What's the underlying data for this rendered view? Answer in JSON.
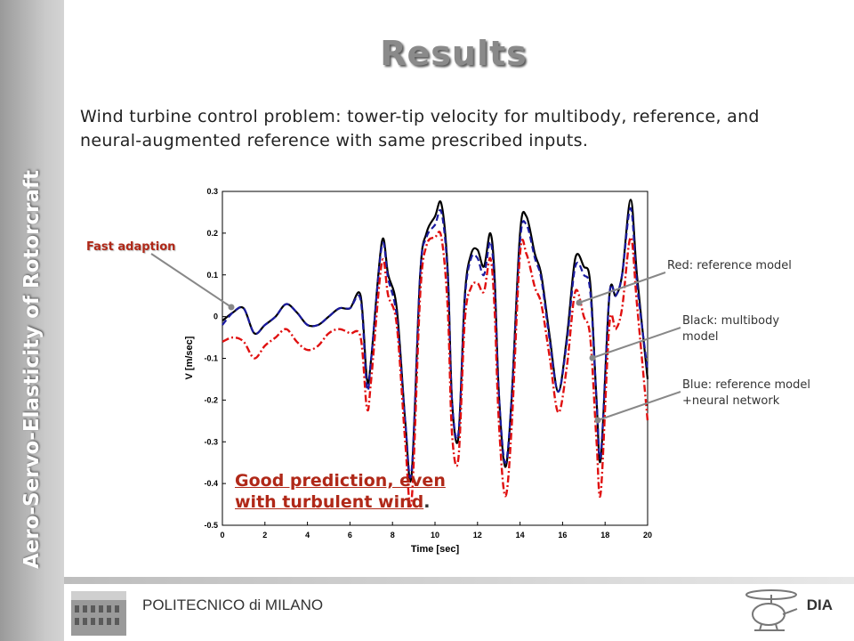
{
  "sidebar": {
    "text": "Aero-Servo-Elasticity of Rotorcraft"
  },
  "slide": {
    "title": "Results",
    "description": "Wind turbine control problem: tower-tip velocity for multibody, reference, and neural-augmented reference with same prescribed inputs."
  },
  "annotations": {
    "fast": "Fast adaption",
    "red": "Red: reference model",
    "black_1": "Black: multibody",
    "black_2": "model",
    "blue_1": "Blue: reference model",
    "blue_2": "+neural network",
    "good_1": "Good prediction, even",
    "good_2": "with turbulent wind",
    "good_2_end": "."
  },
  "footer": {
    "left": "POLITECNICO di MILANO",
    "right": "DIA"
  },
  "colors": {
    "black_series": "#000000",
    "blue_series": "#1a1aa0",
    "red_series": "#e01010",
    "annotation_red": "#b02818"
  },
  "chart_data": {
    "type": "line",
    "title": "",
    "xlabel": "Time [sec]",
    "ylabel": "V [m/sec]",
    "xlim": [
      0,
      20
    ],
    "ylim": [
      -0.5,
      0.3
    ],
    "xticks": [
      0,
      2,
      4,
      6,
      8,
      10,
      12,
      14,
      16,
      18,
      20
    ],
    "yticks": [
      0.3,
      0.2,
      0.1,
      0,
      -0.1,
      -0.2,
      -0.3,
      -0.4,
      -0.5
    ],
    "grid": false,
    "series": [
      {
        "key": "black",
        "style": "solid",
        "color": "#000000",
        "points": [
          [
            0,
            -0.01
          ],
          [
            0.5,
            0.01
          ],
          [
            1,
            0.02
          ],
          [
            1.5,
            -0.04
          ],
          [
            2,
            -0.02
          ],
          [
            2.5,
            0.0
          ],
          [
            3,
            0.03
          ],
          [
            3.5,
            0.01
          ],
          [
            4,
            -0.02
          ],
          [
            4.5,
            -0.02
          ],
          [
            5,
            0.0
          ],
          [
            5.5,
            0.02
          ],
          [
            6,
            0.02
          ],
          [
            6.5,
            0.05
          ],
          [
            6.8,
            -0.15
          ],
          [
            7,
            -0.1
          ],
          [
            7.5,
            0.18
          ],
          [
            7.8,
            0.1
          ],
          [
            8.2,
            0.02
          ],
          [
            8.6,
            -0.25
          ],
          [
            8.9,
            -0.38
          ],
          [
            9.3,
            0.1
          ],
          [
            9.6,
            0.2
          ],
          [
            10,
            0.24
          ],
          [
            10.3,
            0.27
          ],
          [
            10.6,
            0.11
          ],
          [
            10.8,
            -0.2
          ],
          [
            11.1,
            -0.29
          ],
          [
            11.4,
            0.05
          ],
          [
            11.7,
            0.15
          ],
          [
            12,
            0.16
          ],
          [
            12.3,
            0.12
          ],
          [
            12.6,
            0.2
          ],
          [
            12.8,
            0.1
          ],
          [
            13,
            -0.18
          ],
          [
            13.3,
            -0.36
          ],
          [
            13.6,
            -0.2
          ],
          [
            14,
            0.2
          ],
          [
            14.3,
            0.24
          ],
          [
            14.7,
            0.15
          ],
          [
            15,
            0.1
          ],
          [
            15.4,
            -0.05
          ],
          [
            15.8,
            -0.18
          ],
          [
            16.2,
            -0.05
          ],
          [
            16.6,
            0.14
          ],
          [
            17,
            0.12
          ],
          [
            17.3,
            0.08
          ],
          [
            17.6,
            -0.2
          ],
          [
            17.8,
            -0.34
          ],
          [
            18.2,
            0.05
          ],
          [
            18.5,
            0.05
          ],
          [
            18.8,
            0.1
          ],
          [
            19.2,
            0.28
          ],
          [
            19.5,
            0.1
          ],
          [
            20,
            -0.15
          ]
        ]
      },
      {
        "key": "blue",
        "style": "dashed",
        "color": "#1a1aa0",
        "points": [
          [
            0,
            -0.02
          ],
          [
            0.5,
            0.01
          ],
          [
            1,
            0.02
          ],
          [
            1.5,
            -0.04
          ],
          [
            2,
            -0.02
          ],
          [
            2.5,
            0.0
          ],
          [
            3,
            0.03
          ],
          [
            3.5,
            0.01
          ],
          [
            4,
            -0.02
          ],
          [
            4.5,
            -0.02
          ],
          [
            5,
            0.0
          ],
          [
            5.5,
            0.02
          ],
          [
            6,
            0.02
          ],
          [
            6.5,
            0.04
          ],
          [
            6.8,
            -0.17
          ],
          [
            7,
            -0.1
          ],
          [
            7.5,
            0.17
          ],
          [
            7.8,
            0.09
          ],
          [
            8.2,
            0.0
          ],
          [
            8.6,
            -0.25
          ],
          [
            8.9,
            -0.37
          ],
          [
            9.3,
            0.1
          ],
          [
            9.6,
            0.19
          ],
          [
            10,
            0.22
          ],
          [
            10.3,
            0.25
          ],
          [
            10.6,
            0.1
          ],
          [
            10.8,
            -0.2
          ],
          [
            11.1,
            -0.28
          ],
          [
            11.4,
            0.04
          ],
          [
            11.7,
            0.14
          ],
          [
            12,
            0.14
          ],
          [
            12.3,
            0.1
          ],
          [
            12.6,
            0.18
          ],
          [
            12.8,
            0.08
          ],
          [
            13,
            -0.18
          ],
          [
            13.3,
            -0.35
          ],
          [
            13.6,
            -0.2
          ],
          [
            14,
            0.18
          ],
          [
            14.3,
            0.22
          ],
          [
            14.7,
            0.14
          ],
          [
            15,
            0.09
          ],
          [
            15.4,
            -0.06
          ],
          [
            15.8,
            -0.18
          ],
          [
            16.2,
            -0.06
          ],
          [
            16.6,
            0.12
          ],
          [
            17,
            0.1
          ],
          [
            17.3,
            0.06
          ],
          [
            17.6,
            -0.2
          ],
          [
            17.8,
            -0.33
          ],
          [
            18.2,
            0.05
          ],
          [
            18.5,
            0.05
          ],
          [
            18.8,
            0.1
          ],
          [
            19.2,
            0.26
          ],
          [
            19.5,
            0.08
          ],
          [
            20,
            -0.13
          ]
        ]
      },
      {
        "key": "red",
        "style": "dashdot",
        "color": "#e01010",
        "points": [
          [
            0,
            -0.06
          ],
          [
            0.5,
            -0.05
          ],
          [
            1,
            -0.06
          ],
          [
            1.5,
            -0.1
          ],
          [
            2,
            -0.07
          ],
          [
            2.5,
            -0.05
          ],
          [
            3,
            -0.03
          ],
          [
            3.5,
            -0.06
          ],
          [
            4,
            -0.08
          ],
          [
            4.5,
            -0.07
          ],
          [
            5,
            -0.04
          ],
          [
            5.5,
            -0.03
          ],
          [
            6,
            -0.04
          ],
          [
            6.5,
            -0.05
          ],
          [
            6.8,
            -0.22
          ],
          [
            7,
            -0.15
          ],
          [
            7.5,
            0.13
          ],
          [
            7.8,
            0.05
          ],
          [
            8.2,
            -0.02
          ],
          [
            8.6,
            -0.3
          ],
          [
            8.9,
            -0.44
          ],
          [
            9.3,
            0.05
          ],
          [
            9.6,
            0.17
          ],
          [
            10,
            0.19
          ],
          [
            10.3,
            0.19
          ],
          [
            10.6,
            0.02
          ],
          [
            10.8,
            -0.28
          ],
          [
            11.1,
            -0.34
          ],
          [
            11.4,
            -0.01
          ],
          [
            11.7,
            0.07
          ],
          [
            12,
            0.08
          ],
          [
            12.3,
            0.06
          ],
          [
            12.6,
            0.14
          ],
          [
            12.8,
            0.02
          ],
          [
            13,
            -0.25
          ],
          [
            13.3,
            -0.43
          ],
          [
            13.6,
            -0.27
          ],
          [
            14,
            0.15
          ],
          [
            14.3,
            0.15
          ],
          [
            14.7,
            0.07
          ],
          [
            15,
            0.03
          ],
          [
            15.4,
            -0.1
          ],
          [
            15.8,
            -0.23
          ],
          [
            16.2,
            -0.12
          ],
          [
            16.6,
            0.06
          ],
          [
            17,
            0.0
          ],
          [
            17.3,
            -0.05
          ],
          [
            17.6,
            -0.3
          ],
          [
            17.8,
            -0.42
          ],
          [
            18.2,
            -0.02
          ],
          [
            18.5,
            -0.03
          ],
          [
            18.8,
            0.02
          ],
          [
            19.2,
            0.19
          ],
          [
            19.5,
            0.03
          ],
          [
            20,
            -0.25
          ]
        ]
      }
    ]
  }
}
